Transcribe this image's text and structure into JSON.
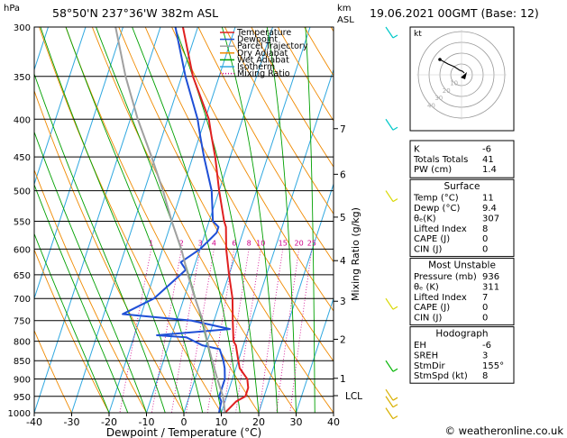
{
  "header": {
    "location": "58°50'N  237°36'W  382m  ASL",
    "datetime": "19.06.2021  00GMT  (Base: 12)",
    "hpa_label": "hPa",
    "km_label": "km",
    "asl_label": "ASL"
  },
  "chart_data": {
    "type": "line",
    "subtype": "skew-T log-p",
    "xlabel": "Dewpoint / Temperature (°C)",
    "ylabel_right": "Mixing Ratio (g/kg)",
    "x_ticks": [
      -40,
      -30,
      -20,
      -10,
      0,
      10,
      20,
      30,
      40
    ],
    "pressure_levels": [
      300,
      350,
      400,
      450,
      500,
      550,
      600,
      650,
      700,
      750,
      800,
      850,
      900,
      950,
      1000
    ],
    "xlim": [
      -40,
      40
    ],
    "plim": [
      300,
      1000
    ],
    "km_ticks": [
      {
        "p": 412,
        "label": "7"
      },
      {
        "p": 475,
        "label": "6"
      },
      {
        "p": 543,
        "label": "5"
      },
      {
        "p": 622,
        "label": "4"
      },
      {
        "p": 706,
        "label": "3"
      },
      {
        "p": 795,
        "label": "2"
      },
      {
        "p": 898,
        "label": "1"
      }
    ],
    "lcl": {
      "p": 948,
      "label": "LCL"
    },
    "mixing_ratio_labels": [
      {
        "label": "1",
        "w": 1
      },
      {
        "label": "2",
        "w": 2
      },
      {
        "label": "3",
        "w": 3
      },
      {
        "label": "4",
        "w": 4
      },
      {
        "label": "6",
        "w": 6
      },
      {
        "label": "8",
        "w": 8
      },
      {
        "label": "10",
        "w": 10
      },
      {
        "label": "15",
        "w": 15
      },
      {
        "label": "20",
        "w": 20
      },
      {
        "label": "25",
        "w": 25
      }
    ],
    "legend": [
      {
        "name": "Temperature",
        "color": "#e02020",
        "style": "solid"
      },
      {
        "name": "Dewpoint",
        "color": "#1f4fd6",
        "style": "solid"
      },
      {
        "name": "Parcel Trajectory",
        "color": "#a0a0a0",
        "style": "solid"
      },
      {
        "name": "Dry Adiabat",
        "color": "#f08a00",
        "style": "solid"
      },
      {
        "name": "Wet Adiabat",
        "color": "#00a000",
        "style": "solid"
      },
      {
        "name": "Isotherm",
        "color": "#30a8e0",
        "style": "solid"
      },
      {
        "name": "Mixing Ratio",
        "color": "#d0008a",
        "style": "dotted"
      }
    ],
    "series": [
      {
        "name": "Temperature",
        "color": "#e02020",
        "points": [
          [
            1000,
            11
          ],
          [
            965,
            13
          ],
          [
            950,
            15
          ],
          [
            925,
            15
          ],
          [
            900,
            14
          ],
          [
            870,
            11
          ],
          [
            850,
            10
          ],
          [
            810,
            8
          ],
          [
            800,
            7
          ],
          [
            750,
            5
          ],
          [
            700,
            3
          ],
          [
            650,
            0
          ],
          [
            600,
            -3
          ],
          [
            560,
            -5
          ],
          [
            550,
            -6
          ],
          [
            500,
            -10
          ],
          [
            450,
            -14
          ],
          [
            420,
            -17
          ],
          [
            400,
            -19
          ],
          [
            350,
            -27
          ],
          [
            300,
            -34
          ]
        ]
      },
      {
        "name": "Dewpoint",
        "color": "#1f4fd6",
        "points": [
          [
            1000,
            9.4
          ],
          [
            965,
            9
          ],
          [
            950,
            8
          ],
          [
            925,
            8
          ],
          [
            900,
            8
          ],
          [
            870,
            7
          ],
          [
            850,
            6
          ],
          [
            820,
            4
          ],
          [
            810,
            -1
          ],
          [
            790,
            -6
          ],
          [
            785,
            -14
          ],
          [
            770,
            5
          ],
          [
            750,
            -6
          ],
          [
            735,
            -25
          ],
          [
            700,
            -18
          ],
          [
            650,
            -13
          ],
          [
            640,
            -12
          ],
          [
            625,
            -14
          ],
          [
            600,
            -10
          ],
          [
            580,
            -8
          ],
          [
            570,
            -7
          ],
          [
            560,
            -7
          ],
          [
            550,
            -9
          ],
          [
            500,
            -12
          ],
          [
            450,
            -17
          ],
          [
            420,
            -20
          ],
          [
            400,
            -22
          ],
          [
            350,
            -29
          ],
          [
            300,
            -36
          ]
        ]
      },
      {
        "name": "Parcel Trajectory",
        "color": "#a0a0a0",
        "points": [
          [
            1000,
            11
          ],
          [
            950,
            9
          ],
          [
            900,
            6
          ],
          [
            850,
            3
          ],
          [
            800,
            0
          ],
          [
            750,
            -3
          ],
          [
            700,
            -7
          ],
          [
            650,
            -11
          ],
          [
            600,
            -15
          ],
          [
            550,
            -20
          ],
          [
            500,
            -25
          ],
          [
            450,
            -31
          ],
          [
            400,
            -38
          ],
          [
            350,
            -45
          ],
          [
            300,
            -52
          ]
        ]
      }
    ]
  },
  "hodograph": {
    "label": "kt",
    "ring_labels": [
      "10",
      "20",
      "30",
      "40"
    ]
  },
  "indices": {
    "block1": [
      {
        "label": "K",
        "value": "-6"
      },
      {
        "label": "Totals Totals",
        "value": "41"
      },
      {
        "label": "PW (cm)",
        "value": "1.4"
      }
    ],
    "surface": {
      "title": "Surface",
      "rows": [
        {
          "label": "Temp (°C)",
          "value": "11"
        },
        {
          "label": "Dewp (°C)",
          "value": "9.4"
        },
        {
          "label": "θₑ(K)",
          "value": "307"
        },
        {
          "label": "Lifted Index",
          "value": "8"
        },
        {
          "label": "CAPE (J)",
          "value": "0"
        },
        {
          "label": "CIN (J)",
          "value": "0"
        }
      ]
    },
    "most_unstable": {
      "title": "Most Unstable",
      "rows": [
        {
          "label": "Pressure (mb)",
          "value": "936"
        },
        {
          "label": "θₑ (K)",
          "value": "311"
        },
        {
          "label": "Lifted Index",
          "value": "7"
        },
        {
          "label": "CAPE (J)",
          "value": "0"
        },
        {
          "label": "CIN (J)",
          "value": "0"
        }
      ]
    },
    "hodograph_block": {
      "title": "Hodograph",
      "rows": [
        {
          "label": "EH",
          "value": "-6"
        },
        {
          "label": "SREH",
          "value": "3"
        },
        {
          "label": "StmDir",
          "value": "155°"
        },
        {
          "label": "StmSpd (kt)",
          "value": "8"
        }
      ]
    }
  },
  "copyright": "© weatheronline.co.uk"
}
